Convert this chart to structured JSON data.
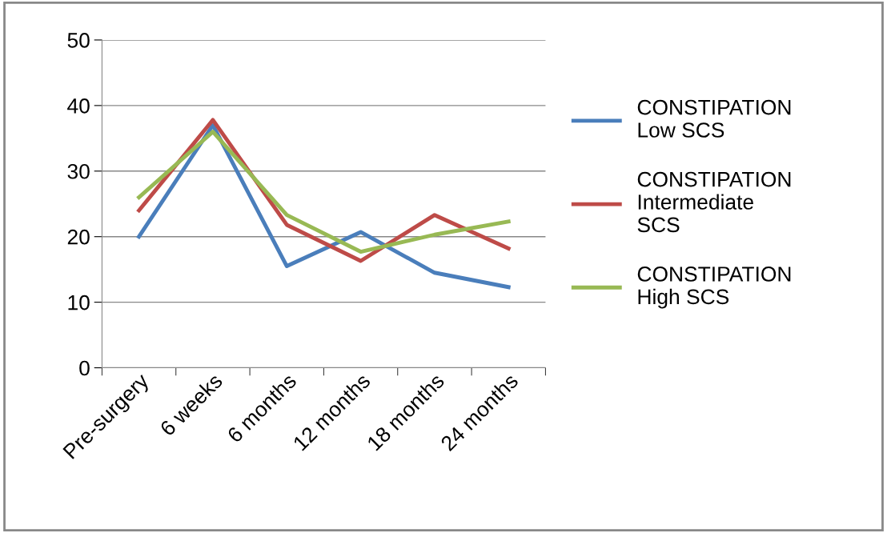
{
  "chart_data": {
    "type": "line",
    "categories": [
      "Pre-surgery",
      "6 weeks",
      "6 months",
      "12 months",
      "18 months",
      "24 months"
    ],
    "series": [
      {
        "name": "CONSTIPATION\nLow SCS",
        "color": "#4a7ebb",
        "values": [
          20,
          37,
          15.5,
          20.7,
          14.5,
          12.3
        ]
      },
      {
        "name": "CONSTIPATION\nIntermediate\nSCS",
        "color": "#be4b48",
        "values": [
          24,
          37.8,
          21.8,
          16.3,
          23.3,
          18.2
        ]
      },
      {
        "name": "CONSTIPATION\nHigh SCS",
        "color": "#98b954",
        "values": [
          26,
          36,
          23.3,
          17.7,
          20.3,
          22.3
        ]
      }
    ],
    "ylim": [
      0,
      50
    ],
    "yticks": [
      0,
      10,
      20,
      30,
      40,
      50
    ],
    "grid": "y",
    "legend": "right",
    "marker": "none",
    "line_style": "solid"
  }
}
